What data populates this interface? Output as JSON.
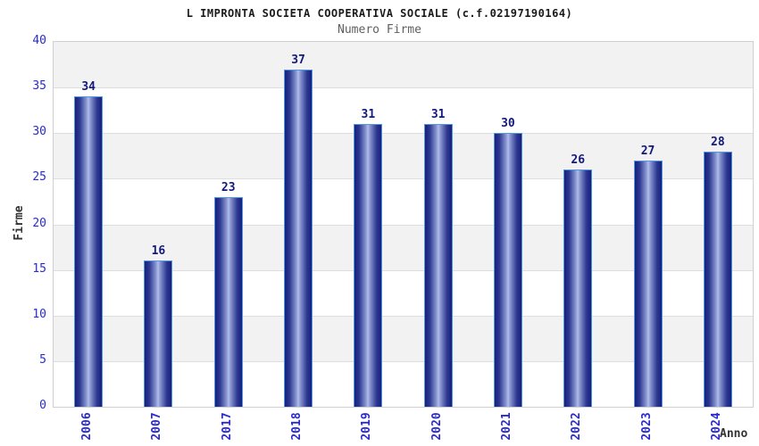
{
  "chart_data": {
    "type": "bar",
    "title": "L IMPRONTA SOCIETA COOPERATIVA SOCIALE (c.f.02197190164)",
    "subtitle": "Numero Firme",
    "categories": [
      "2006",
      "2007",
      "2017",
      "2018",
      "2019",
      "2020",
      "2021",
      "2022",
      "2023",
      "2024"
    ],
    "values": [
      34,
      16,
      23,
      37,
      31,
      31,
      30,
      26,
      27,
      28
    ],
    "xlabel": "Anno",
    "ylabel": "Firme",
    "ylim": [
      0,
      40
    ],
    "ytick_step": 5,
    "yticks": [
      0,
      5,
      10,
      15,
      20,
      25,
      30,
      35,
      40
    ],
    "grid": true,
    "legend_position": "none",
    "band_pattern": "alternating gray/white horizontal bands, gray topmost"
  },
  "colors": {
    "title_color": "#1a1a1a",
    "subtitle_color": "#5f5f5f",
    "tick_label": "#2a2ad0",
    "value_label": "#13197c",
    "axis_label_color": "#333333",
    "bar_dark": "#171f7b",
    "bar_mid1": "#2e3a92",
    "bar_mid2": "#8794cf",
    "bar_light": "#b0bce8",
    "bar_border": "#4f97e0",
    "band_gray": "#f2f2f2",
    "band_white": "#ffffff",
    "gridline": "#dedede",
    "plot_border": "#d0d0d0"
  }
}
